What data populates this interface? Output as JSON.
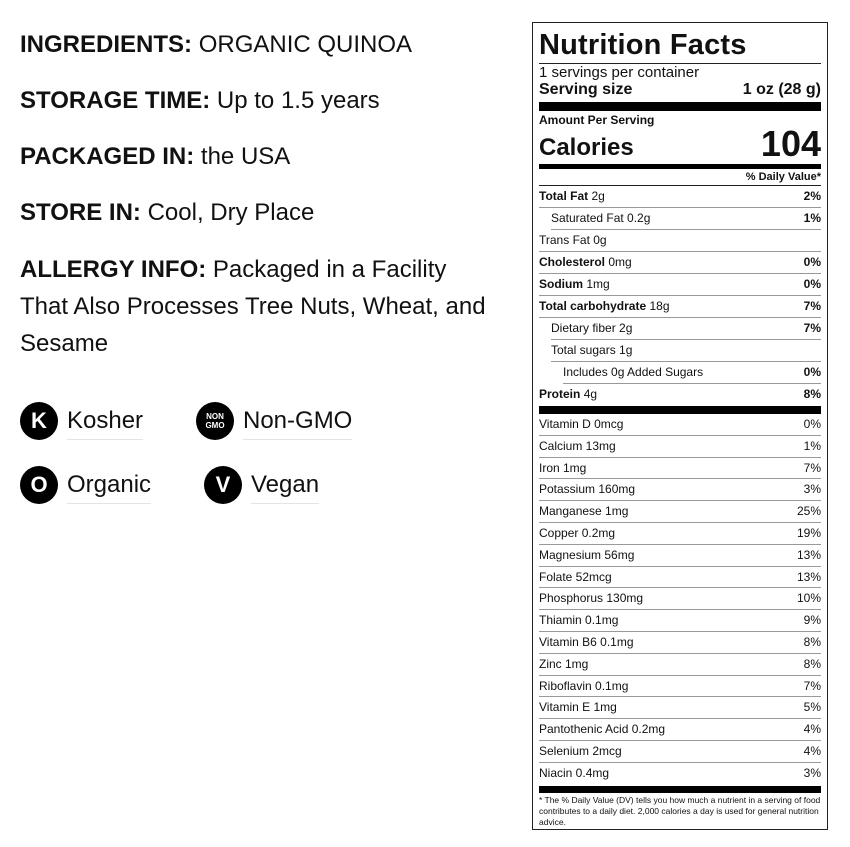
{
  "info": [
    {
      "label": "INGREDIENTS:",
      "value": "ORGANIC QUINOA"
    },
    {
      "label": "STORAGE TIME:",
      "value": "Up to 1.5 years"
    },
    {
      "label": "PACKAGED IN:",
      "value": "the USA"
    },
    {
      "label": "STORE IN:",
      "value": "Cool, Dry Place"
    },
    {
      "label": "ALLERGY INFO:",
      "value": "Packaged in a Facility That Also Processes Tree Nuts, Wheat, and Sesame"
    }
  ],
  "badges": [
    {
      "icon": "kosher-icon",
      "glyph": "K",
      "label": "Kosher"
    },
    {
      "icon": "non-gmo-icon",
      "glyph1": "NON",
      "glyph2": "GMO",
      "label": "Non-GMO"
    },
    {
      "icon": "organic-icon",
      "glyph": "O",
      "label": "Organic"
    },
    {
      "icon": "vegan-icon",
      "glyph": "V",
      "label": "Vegan"
    }
  ],
  "label": {
    "title": "Nutrition Facts",
    "servings": "1 servings per container",
    "serving_size_label": "Serving size",
    "serving_size": "1 oz (28 g)",
    "amount_per_serving": "Amount Per Serving",
    "calories_label": "Calories",
    "calories": "104",
    "dv_header": "% Daily Value*",
    "nutrients": [
      {
        "name": "Total Fat",
        "amount": "2g",
        "pct": "2%",
        "bold": true
      },
      {
        "name": "Saturated Fat 0.2g",
        "amount": "",
        "pct": "1%"
      },
      {
        "name": "Trans Fat 0g",
        "amount": "",
        "pct": ""
      },
      {
        "name": "Cholesterol",
        "amount": "0mg",
        "pct": "0%",
        "bold": true
      },
      {
        "name": "Sodium",
        "amount": "1mg",
        "pct": "0%",
        "bold": true
      },
      {
        "name": "Total carbohydrate",
        "amount": "18g",
        "pct": "7%",
        "bold": true
      },
      {
        "name": "Dietary fiber 2g",
        "amount": "",
        "pct": "7%"
      },
      {
        "name": "Total sugars 1g",
        "amount": "",
        "pct": ""
      },
      {
        "name": "Includes 0g Added Sugars",
        "amount": "",
        "pct": "0%"
      },
      {
        "name": "Protein",
        "amount": "4g",
        "pct": "8%",
        "bold": true
      }
    ],
    "vitamins": [
      {
        "name": "Vitamin D 0mcg",
        "pct": "0%"
      },
      {
        "name": "Calcium 13mg",
        "pct": "1%"
      },
      {
        "name": "Iron 1mg",
        "pct": "7%"
      },
      {
        "name": "Potassium 160mg",
        "pct": "3%"
      },
      {
        "name": "Manganese 1mg",
        "pct": "25%"
      },
      {
        "name": "Copper 0.2mg",
        "pct": "19%"
      },
      {
        "name": "Magnesium 56mg",
        "pct": "13%"
      },
      {
        "name": "Folate 52mcg",
        "pct": "13%"
      },
      {
        "name": "Phosphorus 130mg",
        "pct": "10%"
      },
      {
        "name": "Thiamin 0.1mg",
        "pct": "9%"
      },
      {
        "name": "Vitamin B6 0.1mg",
        "pct": "8%"
      },
      {
        "name": "Zinc 1mg",
        "pct": "8%"
      },
      {
        "name": "Riboflavin 0.1mg",
        "pct": "7%"
      },
      {
        "name": "Vitamin E 1mg",
        "pct": "5%"
      },
      {
        "name": "Pantothenic Acid 0.2mg",
        "pct": "4%"
      },
      {
        "name": "Selenium 2mcg",
        "pct": "4%"
      },
      {
        "name": "Niacin 0.4mg",
        "pct": "3%"
      }
    ],
    "footnote": "* The % Daily Value (DV) tells you how much a nutrient in a serving of food contributes to a daily diet. 2,000 calories a day is used for general nutrition advice."
  }
}
